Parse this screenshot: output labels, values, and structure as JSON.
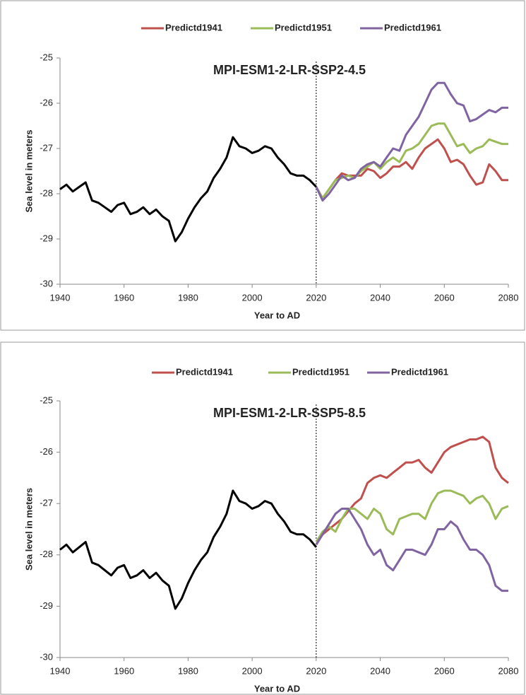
{
  "chart_data": [
    {
      "type": "line",
      "title": "MPI-ESM1-2-LR-SSP2-4.5",
      "x_label": "Year to AD",
      "y_label": "Sea level in meters",
      "x": [
        1940,
        1942,
        1944,
        1946,
        1948,
        1950,
        1952,
        1954,
        1956,
        1958,
        1960,
        1962,
        1964,
        1966,
        1968,
        1970,
        1972,
        1974,
        1976,
        1978,
        1980,
        1982,
        1984,
        1986,
        1988,
        1990,
        1992,
        1994,
        1996,
        1998,
        2000,
        2002,
        2004,
        2006,
        2008,
        2010,
        2012,
        2014,
        2016,
        2018,
        2020,
        2022,
        2024,
        2026,
        2028,
        2030,
        2032,
        2034,
        2036,
        2038,
        2040,
        2042,
        2044,
        2046,
        2048,
        2050,
        2052,
        2054,
        2056,
        2058,
        2060,
        2062,
        2064,
        2066,
        2068,
        2070,
        2072,
        2074,
        2076,
        2078,
        2080
      ],
      "xlim": [
        1940,
        2080
      ],
      "xticks": [
        1940,
        1960,
        1980,
        2000,
        2020,
        2040,
        2060,
        2080
      ],
      "ylim": [
        -30,
        -25
      ],
      "yticks": [
        -30,
        -29,
        -28,
        -27,
        -26,
        -25
      ],
      "reference_line_x": 2020,
      "series": [
        {
          "color": "#000000",
          "values": [
            -27.9,
            -27.8,
            -27.95,
            -27.85,
            -27.75,
            -28.15,
            -28.2,
            -28.3,
            -28.4,
            -28.25,
            -28.2,
            -28.45,
            -28.4,
            -28.3,
            -28.45,
            -28.35,
            -28.5,
            -28.6,
            -29.05,
            -28.85,
            -28.55,
            -28.3,
            -28.1,
            -27.95,
            -27.65,
            -27.45,
            -27.2,
            -26.75,
            -26.95,
            -27.0,
            -27.1,
            -27.05,
            -26.95,
            -27.0,
            -27.2,
            -27.35,
            -27.55,
            -27.6,
            -27.6,
            -27.7,
            -27.85,
            null,
            null,
            null,
            null,
            null,
            null,
            null,
            null,
            null,
            null,
            null,
            null,
            null,
            null,
            null,
            null,
            null,
            null,
            null,
            null,
            null,
            null,
            null,
            null,
            null,
            null,
            null,
            null,
            null,
            null
          ]
        },
        {
          "name": "Predictd1941",
          "color": "#c0504d",
          "values": [
            null,
            null,
            null,
            null,
            null,
            null,
            null,
            null,
            null,
            null,
            null,
            null,
            null,
            null,
            null,
            null,
            null,
            null,
            null,
            null,
            null,
            null,
            null,
            null,
            null,
            null,
            null,
            null,
            null,
            null,
            null,
            null,
            null,
            null,
            null,
            null,
            null,
            null,
            null,
            null,
            -27.85,
            -28.1,
            -27.9,
            -27.7,
            -27.55,
            -27.6,
            -27.6,
            -27.6,
            -27.45,
            -27.5,
            -27.65,
            -27.55,
            -27.4,
            -27.4,
            -27.3,
            -27.45,
            -27.2,
            -27.0,
            -26.9,
            -26.8,
            -27.0,
            -27.3,
            -27.25,
            -27.35,
            -27.6,
            -27.8,
            -27.75,
            -27.35,
            -27.5,
            -27.7,
            -27.7
          ]
        },
        {
          "name": "Predictd1951",
          "color": "#9bbb59",
          "values": [
            null,
            null,
            null,
            null,
            null,
            null,
            null,
            null,
            null,
            null,
            null,
            null,
            null,
            null,
            null,
            null,
            null,
            null,
            null,
            null,
            null,
            null,
            null,
            null,
            null,
            null,
            null,
            null,
            null,
            null,
            null,
            null,
            null,
            null,
            null,
            null,
            null,
            null,
            null,
            null,
            -27.85,
            -28.1,
            -27.9,
            -27.7,
            -27.65,
            -27.6,
            -27.65,
            -27.5,
            -27.4,
            -27.3,
            -27.45,
            -27.3,
            -27.2,
            -27.3,
            -27.05,
            -27.0,
            -26.9,
            -26.7,
            -26.5,
            -26.45,
            -26.45,
            -26.7,
            -26.95,
            -26.9,
            -27.1,
            -27.0,
            -26.95,
            -26.8,
            -26.85,
            -26.9,
            -26.9
          ]
        },
        {
          "name": "Predictd1961",
          "color": "#8064a2",
          "values": [
            null,
            null,
            null,
            null,
            null,
            null,
            null,
            null,
            null,
            null,
            null,
            null,
            null,
            null,
            null,
            null,
            null,
            null,
            null,
            null,
            null,
            null,
            null,
            null,
            null,
            null,
            null,
            null,
            null,
            null,
            null,
            null,
            null,
            null,
            null,
            null,
            null,
            null,
            null,
            null,
            -27.85,
            -28.15,
            -28.0,
            -27.8,
            -27.6,
            -27.7,
            -27.65,
            -27.45,
            -27.35,
            -27.3,
            -27.4,
            -27.2,
            -27.0,
            -27.05,
            -26.7,
            -26.5,
            -26.3,
            -26.0,
            -25.7,
            -25.55,
            -25.55,
            -25.8,
            -26.0,
            -26.05,
            -26.4,
            -26.35,
            -26.25,
            -26.15,
            -26.2,
            -26.1,
            -26.1
          ]
        }
      ]
    },
    {
      "type": "line",
      "title": "MPI-ESM1-2-LR-SSP5-8.5",
      "x_label": "Year to AD",
      "y_label": "Sea level in meters",
      "x": [
        1940,
        1942,
        1944,
        1946,
        1948,
        1950,
        1952,
        1954,
        1956,
        1958,
        1960,
        1962,
        1964,
        1966,
        1968,
        1970,
        1972,
        1974,
        1976,
        1978,
        1980,
        1982,
        1984,
        1986,
        1988,
        1990,
        1992,
        1994,
        1996,
        1998,
        2000,
        2002,
        2004,
        2006,
        2008,
        2010,
        2012,
        2014,
        2016,
        2018,
        2020,
        2022,
        2024,
        2026,
        2028,
        2030,
        2032,
        2034,
        2036,
        2038,
        2040,
        2042,
        2044,
        2046,
        2048,
        2050,
        2052,
        2054,
        2056,
        2058,
        2060,
        2062,
        2064,
        2066,
        2068,
        2070,
        2072,
        2074,
        2076,
        2078,
        2080
      ],
      "xlim": [
        1940,
        2080
      ],
      "xticks": [
        1940,
        1960,
        1980,
        2000,
        2020,
        2040,
        2060,
        2080
      ],
      "ylim": [
        -30,
        -25
      ],
      "yticks": [
        -30,
        -29,
        -28,
        -27,
        -26,
        -25
      ],
      "reference_line_x": 2020,
      "series": [
        {
          "color": "#000000",
          "values": [
            -27.9,
            -27.8,
            -27.95,
            -27.85,
            -27.75,
            -28.15,
            -28.2,
            -28.3,
            -28.4,
            -28.25,
            -28.2,
            -28.45,
            -28.4,
            -28.3,
            -28.45,
            -28.35,
            -28.5,
            -28.6,
            -29.05,
            -28.85,
            -28.55,
            -28.3,
            -28.1,
            -27.95,
            -27.65,
            -27.45,
            -27.2,
            -26.75,
            -26.95,
            -27.0,
            -27.1,
            -27.05,
            -26.95,
            -27.0,
            -27.2,
            -27.35,
            -27.55,
            -27.6,
            -27.6,
            -27.7,
            -27.85,
            null,
            null,
            null,
            null,
            null,
            null,
            null,
            null,
            null,
            null,
            null,
            null,
            null,
            null,
            null,
            null,
            null,
            null,
            null,
            null,
            null,
            null,
            null,
            null,
            null,
            null,
            null,
            null,
            null,
            null
          ]
        },
        {
          "name": "Predictd1941",
          "color": "#c0504d",
          "values": [
            null,
            null,
            null,
            null,
            null,
            null,
            null,
            null,
            null,
            null,
            null,
            null,
            null,
            null,
            null,
            null,
            null,
            null,
            null,
            null,
            null,
            null,
            null,
            null,
            null,
            null,
            null,
            null,
            null,
            null,
            null,
            null,
            null,
            null,
            null,
            null,
            null,
            null,
            null,
            null,
            -27.8,
            -27.6,
            -27.5,
            -27.4,
            -27.3,
            -27.15,
            -27.0,
            -26.9,
            -26.6,
            -26.5,
            -26.45,
            -26.5,
            -26.4,
            -26.3,
            -26.2,
            -26.2,
            -26.15,
            -26.3,
            -26.4,
            -26.2,
            -26.0,
            -25.9,
            -25.85,
            -25.8,
            -25.75,
            -25.75,
            -25.7,
            -25.8,
            -26.3,
            -26.5,
            -26.6
          ]
        },
        {
          "name": "Predictd1951",
          "color": "#9bbb59",
          "values": [
            null,
            null,
            null,
            null,
            null,
            null,
            null,
            null,
            null,
            null,
            null,
            null,
            null,
            null,
            null,
            null,
            null,
            null,
            null,
            null,
            null,
            null,
            null,
            null,
            null,
            null,
            null,
            null,
            null,
            null,
            null,
            null,
            null,
            null,
            null,
            null,
            null,
            null,
            null,
            null,
            -27.75,
            -27.55,
            -27.45,
            -27.55,
            -27.3,
            -27.1,
            -27.1,
            -27.2,
            -27.3,
            -27.1,
            -27.2,
            -27.5,
            -27.6,
            -27.3,
            -27.25,
            -27.2,
            -27.2,
            -27.3,
            -27.0,
            -26.8,
            -26.75,
            -26.75,
            -26.8,
            -26.85,
            -27.0,
            -26.9,
            -26.85,
            -27.0,
            -27.3,
            -27.1,
            -27.05
          ]
        },
        {
          "name": "Predictd1961",
          "color": "#8064a2",
          "values": [
            null,
            null,
            null,
            null,
            null,
            null,
            null,
            null,
            null,
            null,
            null,
            null,
            null,
            null,
            null,
            null,
            null,
            null,
            null,
            null,
            null,
            null,
            null,
            null,
            null,
            null,
            null,
            null,
            null,
            null,
            null,
            null,
            null,
            null,
            null,
            null,
            null,
            null,
            null,
            null,
            -27.8,
            -27.6,
            -27.4,
            -27.2,
            -27.1,
            -27.1,
            -27.3,
            -27.5,
            -27.8,
            -28.0,
            -27.9,
            -28.2,
            -28.3,
            -28.1,
            -27.9,
            -27.9,
            -27.95,
            -28.0,
            -27.8,
            -27.5,
            -27.5,
            -27.35,
            -27.45,
            -27.7,
            -27.9,
            -27.9,
            -28.0,
            -28.2,
            -28.6,
            -28.7,
            -28.7
          ]
        }
      ]
    }
  ]
}
